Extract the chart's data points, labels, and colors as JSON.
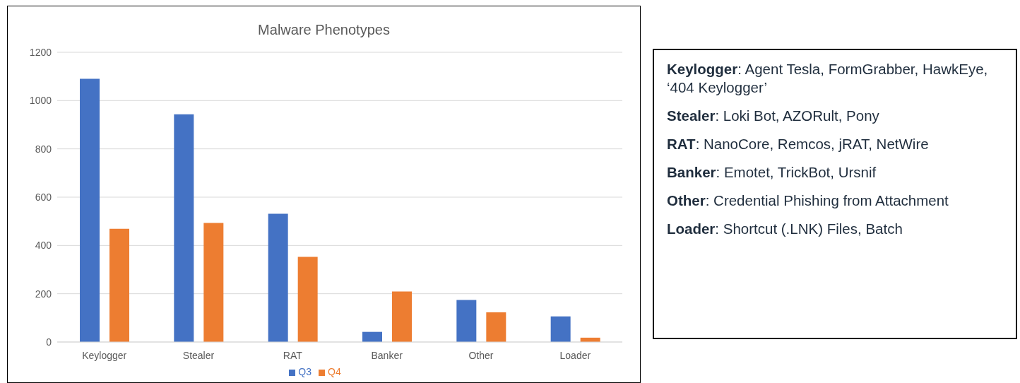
{
  "chart_data": [
    {
      "type": "bar",
      "title": "Malware Phenotypes",
      "categories": [
        "Keylogger",
        "Stealer",
        "RAT",
        "Banker",
        "Other",
        "Loader"
      ],
      "series": [
        {
          "name": "Q3",
          "color": "#4472c4",
          "values": [
            1090,
            943,
            531,
            42,
            174,
            106
          ]
        },
        {
          "name": "Q4",
          "color": "#ed7d31",
          "values": [
            469,
            493,
            353,
            209,
            123,
            18
          ]
        }
      ],
      "ylim": [
        0,
        1200
      ],
      "yticks": [
        0,
        200,
        400,
        600,
        800,
        1000,
        1200
      ],
      "grid": "y",
      "legend": "bottom"
    },
    {
      "type": "other",
      "annotations": [
        "Keylogger: Agent Tesla, FormGrabber, HawkEye, ‘404 Keylogger’",
        "Stealer: Loki Bot, AZORult, Pony",
        "RAT: NanoCore, Remcos, jRAT, NetWire",
        "Banker: Emotet, TrickBot, Ursnif",
        "Other: Credential Phishing from Attachment",
        "Loader: Shortcut (.LNK) Files, Batch"
      ]
    }
  ]
}
